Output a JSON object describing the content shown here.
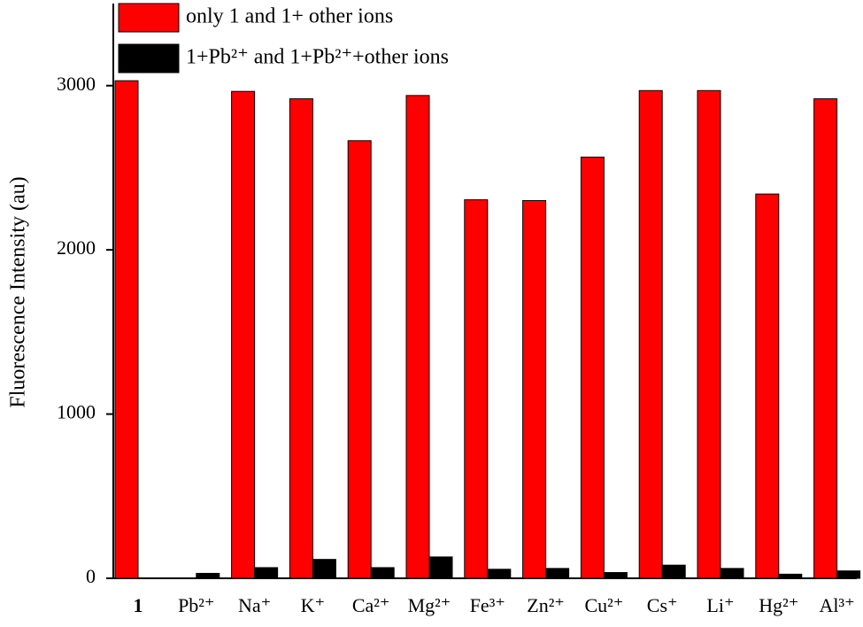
{
  "chart_data": {
    "type": "bar",
    "y_label": "Fluorescence Intensity (au)",
    "categories": [
      "1",
      "Pb²⁺",
      "Na⁺",
      "K⁺",
      "Ca²⁺",
      "Mg²⁺",
      "Fe³⁺",
      "Zn²⁺",
      "Cu²⁺",
      "Cs⁺",
      "Li⁺",
      "Hg²⁺",
      "Al³⁺"
    ],
    "series": [
      {
        "name": "only 1 and 1+ other ions",
        "color": "#ff0000",
        "values": [
          3030,
          null,
          2965,
          2920,
          2665,
          2940,
          2305,
          2300,
          2565,
          2970,
          2970,
          2340,
          2920
        ]
      },
      {
        "name": "1+Pb²⁺ and 1+Pb²⁺+other ions",
        "color": "#000000",
        "values": [
          null,
          30,
          65,
          115,
          65,
          130,
          55,
          60,
          35,
          80,
          60,
          25,
          45
        ]
      }
    ],
    "ylim": [
      0,
      3500
    ],
    "yticks": [
      0,
      1000,
      2000,
      3000
    ]
  }
}
